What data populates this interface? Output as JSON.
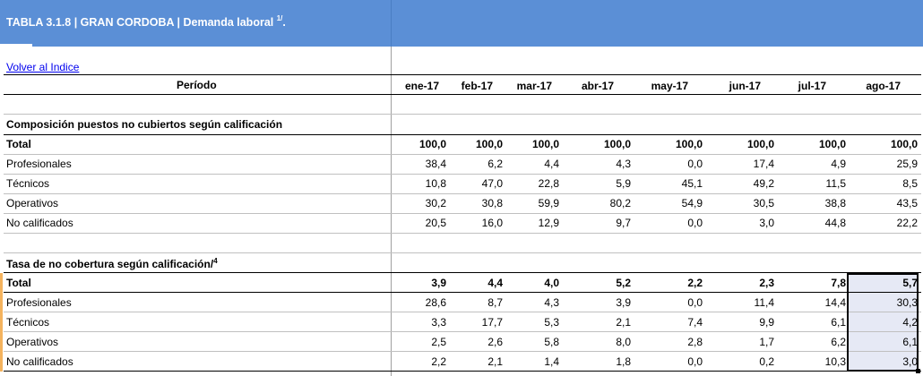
{
  "header": {
    "title": "TABLA 3.1.8 | GRAN CORDOBA | Demanda laboral",
    "title_sup": "1/",
    "title_suffix": "."
  },
  "link": {
    "back_label": "Volver al Indice"
  },
  "table": {
    "period_label": "Período",
    "columns": [
      "ene-17",
      "feb-17",
      "mar-17",
      "abr-17",
      "may-17",
      "jun-17",
      "jul-17",
      "ago-17"
    ],
    "section1": {
      "title": "Composición puestos no cubiertos según calificación",
      "rows": [
        {
          "label": "Total",
          "values": [
            "100,0",
            "100,0",
            "100,0",
            "100,0",
            "100,0",
            "100,0",
            "100,0",
            "100,0"
          ],
          "bold": true
        },
        {
          "label": "Profesionales",
          "values": [
            "38,4",
            "6,2",
            "4,4",
            "4,3",
            "0,0",
            "17,4",
            "4,9",
            "25,9"
          ]
        },
        {
          "label": "Técnicos",
          "values": [
            "10,8",
            "47,0",
            "22,8",
            "5,9",
            "45,1",
            "49,2",
            "11,5",
            "8,5"
          ]
        },
        {
          "label": "Operativos",
          "values": [
            "30,2",
            "30,8",
            "59,9",
            "80,2",
            "54,9",
            "30,5",
            "38,8",
            "43,5"
          ]
        },
        {
          "label": "No calificados",
          "values": [
            "20,5",
            "16,0",
            "12,9",
            "9,7",
            "0,0",
            "3,0",
            "44,8",
            "22,2"
          ]
        }
      ]
    },
    "section2": {
      "title": "Tasa de no cobertura según calificación/",
      "title_sup": "4",
      "rows": [
        {
          "label": "Total",
          "values": [
            "3,9",
            "4,4",
            "4,0",
            "5,2",
            "2,2",
            "2,3",
            "7,8",
            "5,7"
          ],
          "bold": true
        },
        {
          "label": "Profesionales",
          "values": [
            "28,6",
            "8,7",
            "4,3",
            "3,9",
            "0,0",
            "11,4",
            "14,4",
            "30,3"
          ]
        },
        {
          "label": "Técnicos",
          "values": [
            "3,3",
            "17,7",
            "5,3",
            "2,1",
            "7,4",
            "9,9",
            "6,1",
            "4,2"
          ]
        },
        {
          "label": "Operativos",
          "values": [
            "2,5",
            "2,6",
            "5,8",
            "8,0",
            "2,8",
            "1,7",
            "6,2",
            "6,1"
          ]
        },
        {
          "label": "No calificados",
          "values": [
            "2,2",
            "2,1",
            "1,4",
            "1,8",
            "0,0",
            "0,2",
            "10,3",
            "3,0"
          ]
        }
      ]
    }
  }
}
